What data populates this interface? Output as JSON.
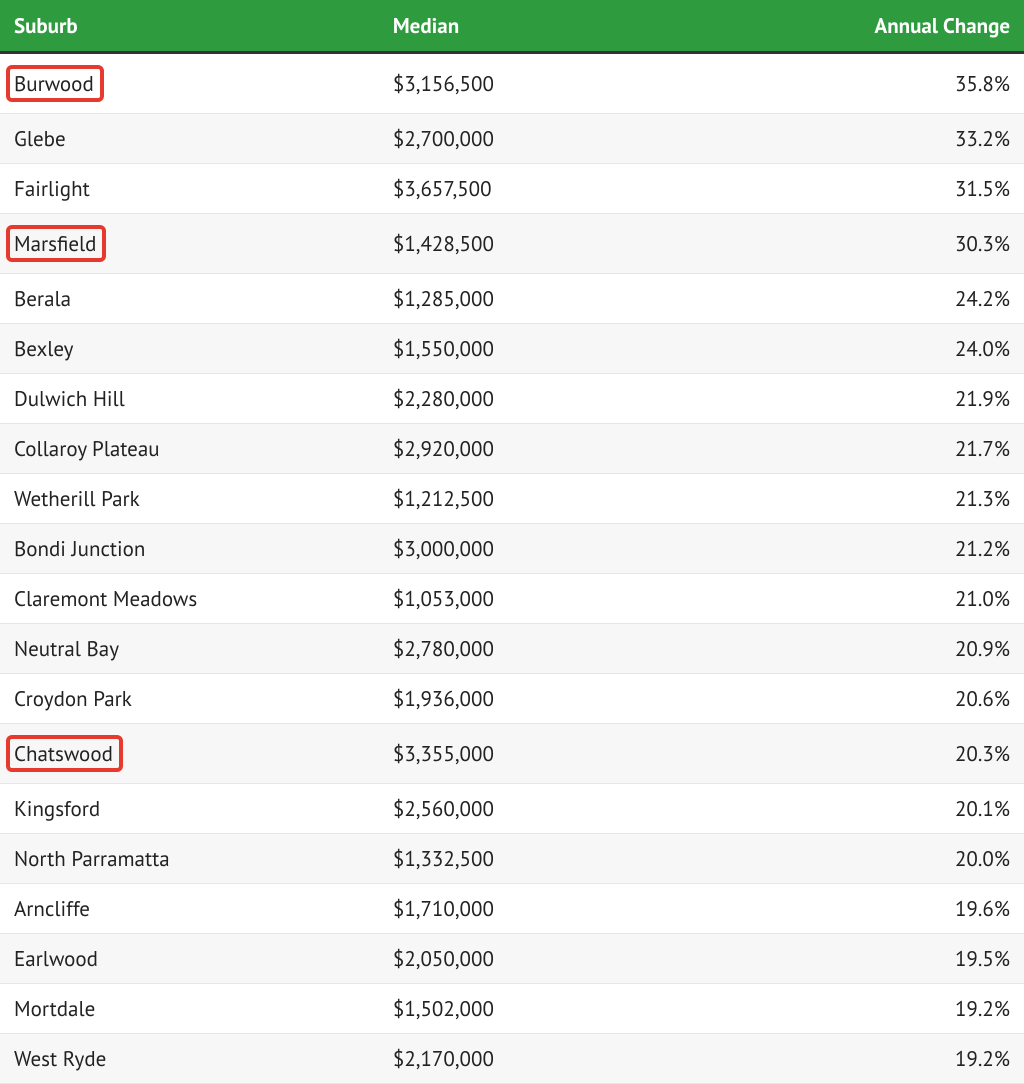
{
  "table": {
    "header_bg": "#2e9b3e",
    "header_fg": "#ffffff",
    "row_alt_bg": "#f7f7f7",
    "highlight_border": "#e63a2e",
    "columns": [
      {
        "key": "suburb",
        "label": "Suburb",
        "align": "left",
        "width": "37%"
      },
      {
        "key": "median",
        "label": "Median",
        "align": "left",
        "width": "33%"
      },
      {
        "key": "change",
        "label": "Annual Change",
        "align": "right",
        "width": "30%"
      }
    ],
    "rows": [
      {
        "suburb": "Burwood",
        "median": "$3,156,500",
        "change": "35.8%",
        "highlight": true
      },
      {
        "suburb": "Glebe",
        "median": "$2,700,000",
        "change": "33.2%",
        "highlight": false
      },
      {
        "suburb": "Fairlight",
        "median": "$3,657,500",
        "change": "31.5%",
        "highlight": false
      },
      {
        "suburb": "Marsfield",
        "median": "$1,428,500",
        "change": "30.3%",
        "highlight": true
      },
      {
        "suburb": "Berala",
        "median": "$1,285,000",
        "change": "24.2%",
        "highlight": false
      },
      {
        "suburb": "Bexley",
        "median": "$1,550,000",
        "change": "24.0%",
        "highlight": false
      },
      {
        "suburb": "Dulwich Hill",
        "median": "$2,280,000",
        "change": "21.9%",
        "highlight": false
      },
      {
        "suburb": "Collaroy Plateau",
        "median": "$2,920,000",
        "change": "21.7%",
        "highlight": false
      },
      {
        "suburb": "Wetherill Park",
        "median": "$1,212,500",
        "change": "21.3%",
        "highlight": false
      },
      {
        "suburb": "Bondi Junction",
        "median": "$3,000,000",
        "change": "21.2%",
        "highlight": false
      },
      {
        "suburb": "Claremont Meadows",
        "median": "$1,053,000",
        "change": "21.0%",
        "highlight": false
      },
      {
        "suburb": "Neutral Bay",
        "median": "$2,780,000",
        "change": "20.9%",
        "highlight": false
      },
      {
        "suburb": "Croydon Park",
        "median": "$1,936,000",
        "change": "20.6%",
        "highlight": false
      },
      {
        "suburb": "Chatswood",
        "median": "$3,355,000",
        "change": "20.3%",
        "highlight": true
      },
      {
        "suburb": "Kingsford",
        "median": "$2,560,000",
        "change": "20.1%",
        "highlight": false
      },
      {
        "suburb": "North Parramatta",
        "median": "$1,332,500",
        "change": "20.0%",
        "highlight": false
      },
      {
        "suburb": "Arncliffe",
        "median": "$1,710,000",
        "change": "19.6%",
        "highlight": false
      },
      {
        "suburb": "Earlwood",
        "median": "$2,050,000",
        "change": "19.5%",
        "highlight": false
      },
      {
        "suburb": "Mortdale",
        "median": "$1,502,000",
        "change": "19.2%",
        "highlight": false
      },
      {
        "suburb": "West Ryde",
        "median": "$2,170,000",
        "change": "19.2%",
        "highlight": false
      }
    ]
  }
}
